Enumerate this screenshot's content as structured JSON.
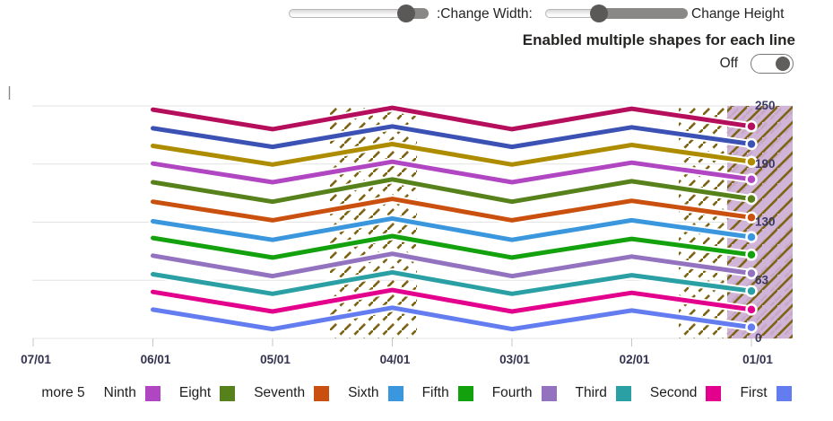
{
  "controls": {
    "width_slider_label": ":Change Width:",
    "height_slider_label": "Change Height",
    "shapes_toggle_title": "Enabled multiple shapes for each line",
    "toggle_state_label": "Off"
  },
  "chart_data": {
    "type": "line",
    "rtl": true,
    "grid": true,
    "legend_position": "bottom",
    "x_labels": [
      "07/01",
      "06/01",
      "05/01",
      "04/01",
      "03/01",
      "02/01",
      "01/01"
    ],
    "y_tick_labels": [
      "250",
      "190",
      "130",
      "63",
      "0"
    ],
    "ylim": [
      0,
      250
    ],
    "series_x_labels": [
      "06/01",
      "05/01",
      "04/01",
      "03/01",
      "02/01",
      "01/01"
    ],
    "series": [
      {
        "legend": "First",
        "color": "#637cef",
        "values": [
          31,
          10,
          33,
          10,
          30,
          12
        ]
      },
      {
        "legend": "Second",
        "color": "#e3008c",
        "values": [
          50,
          29,
          52,
          29,
          49,
          31
        ]
      },
      {
        "legend": "Third",
        "color": "#2aa0a4",
        "values": [
          69,
          48,
          71,
          48,
          68,
          51
        ]
      },
      {
        "legend": "Fourth",
        "color": "#9373c0",
        "values": [
          89,
          67,
          91,
          67,
          88,
          70
        ]
      },
      {
        "legend": "Fifth",
        "color": "#13a10e",
        "values": [
          108,
          87,
          110,
          87,
          107,
          90
        ]
      },
      {
        "legend": "Sixth",
        "color": "#3a96dd",
        "values": [
          126,
          106,
          129,
          106,
          127,
          109
        ]
      },
      {
        "legend": "Seventh",
        "color": "#ca5010",
        "values": [
          147,
          127,
          150,
          127,
          148,
          130
        ]
      },
      {
        "legend": "Eight",
        "color": "#57811b",
        "values": [
          168,
          147,
          171,
          147,
          169,
          150
        ]
      },
      {
        "legend": "Ninth",
        "color": "#b146c2",
        "values": [
          188,
          168,
          190,
          168,
          189,
          171
        ]
      },
      {
        "legend": "",
        "color": "#ae8c00",
        "values": [
          207,
          187,
          209,
          187,
          208,
          190
        ]
      },
      {
        "legend": "",
        "color": "#3c51b4",
        "values": [
          226,
          206,
          228,
          206,
          227,
          209
        ]
      },
      {
        "legend": "",
        "color": "#b50e5c",
        "values": [
          246,
          225,
          248,
          225,
          247,
          228
        ]
      }
    ],
    "highlight_bands": [
      {
        "from_x": 368,
        "to_x": 465,
        "pattern": "dashed",
        "fill": null
      },
      {
        "from_x": 757,
        "to_x": 884,
        "pattern": "dashed",
        "fill": null
      },
      {
        "from_x": 811,
        "to_x": 884,
        "pattern": "solid",
        "fill": "#cdafd6"
      }
    ],
    "hatch_color": "#7d6414"
  },
  "legend": {
    "items": [
      {
        "label": "more 5",
        "color": null
      },
      {
        "label": "Ninth",
        "color": "#b146c2"
      },
      {
        "label": "Eight",
        "color": "#57811b"
      },
      {
        "label": "Seventh",
        "color": "#ca5010"
      },
      {
        "label": "Sixth",
        "color": "#3a96dd"
      },
      {
        "label": "Fifth",
        "color": "#13a10e"
      },
      {
        "label": "Fourth",
        "color": "#9373c0"
      },
      {
        "label": "Third",
        "color": "#2aa0a4"
      },
      {
        "label": "Second",
        "color": "#e3008c"
      },
      {
        "label": "First",
        "color": "#637cef"
      }
    ]
  }
}
